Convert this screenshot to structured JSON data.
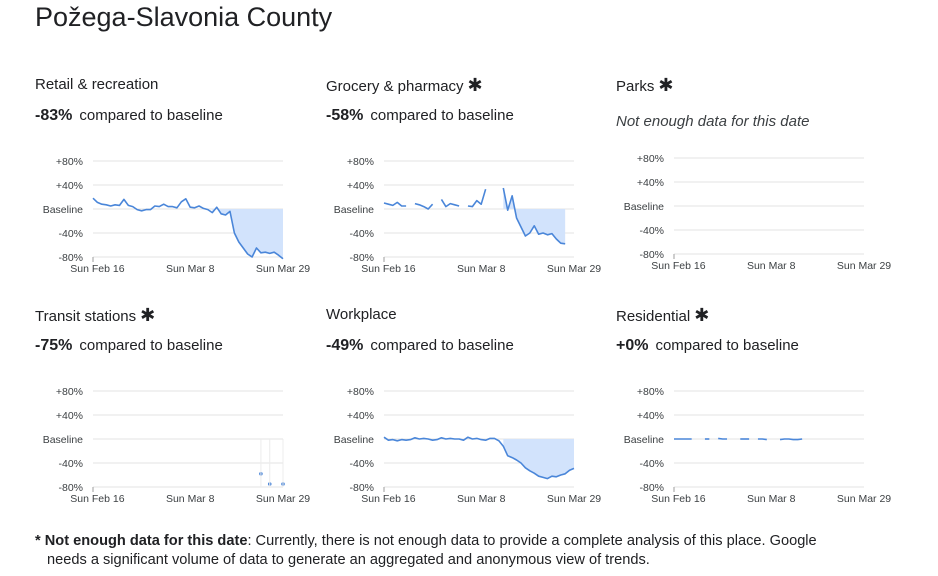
{
  "title": "Požega-Slavonia County",
  "compared_text": "compared to baseline",
  "no_data_text": "Not enough data for this date",
  "footnote": {
    "star": "*",
    "bold": "Not enough data for this date",
    "text1": ": Currently, there is not enough data to provide a complete analysis of this place. Google",
    "text2": "needs a significant volume of data to generate an aggregated and anonymous view of trends."
  },
  "colors": {
    "line": "#4a86d9",
    "fill": "#d2e3fc",
    "grid": "#e3e3e3",
    "text": "#202124"
  },
  "chart_data": [
    {
      "type": "line",
      "title": "Retail & recreation",
      "has_star": false,
      "change": "-83%",
      "y_tick_labels": [
        "+80%",
        "+40%",
        "Baseline",
        "-40%",
        "-80%"
      ],
      "ylim": [
        -80,
        80
      ],
      "x_tick_labels": [
        "Sun Feb 16",
        "Sun Mar 8",
        "Sun Mar 29"
      ],
      "x_range": [
        "2020-02-15",
        "2020-03-29"
      ],
      "shaded_from": "2020-03-13",
      "series": [
        {
          "x_start": "2020-02-15",
          "values": [
            18,
            11,
            8,
            7,
            5,
            7,
            6,
            16,
            6,
            4,
            -1,
            -3,
            -1,
            -1,
            5,
            4,
            8,
            4,
            4,
            2,
            12,
            17,
            3,
            2,
            5,
            1,
            -1,
            -6,
            3,
            -8,
            -10,
            -4,
            -40,
            -55,
            -65,
            -75,
            -80,
            -65,
            -73,
            -72,
            -74,
            -72,
            -77,
            -83
          ]
        }
      ],
      "grid": true
    },
    {
      "type": "line",
      "title": "Grocery & pharmacy",
      "has_star": true,
      "change": "-58%",
      "y_tick_labels": [
        "+80%",
        "+40%",
        "Baseline",
        "-40%",
        "-80%"
      ],
      "ylim": [
        -80,
        80
      ],
      "x_tick_labels": [
        "Sun Feb 16",
        "Sun Mar 8",
        "Sun Mar 29"
      ],
      "x_range": [
        "2020-02-15",
        "2020-03-29"
      ],
      "shaded_from": "2020-03-13",
      "series": [
        {
          "x_start": "2020-02-15",
          "values": [
            10,
            8,
            6,
            11,
            5,
            5,
            null,
            9,
            7,
            4,
            0,
            8,
            null,
            16,
            4,
            9,
            7,
            5,
            null,
            5,
            4,
            14,
            8,
            33,
            null,
            null,
            null,
            35,
            -2,
            22,
            -15,
            -30,
            -45,
            -40,
            -28,
            -42,
            -40,
            -43,
            -41,
            -50,
            -57,
            -58
          ]
        }
      ],
      "grid": true
    },
    {
      "type": "line",
      "title": "Parks",
      "has_star": true,
      "change": "",
      "y_tick_labels": [
        "+80%",
        "+40%",
        "Baseline",
        "-40%",
        "-80%"
      ],
      "ylim": [
        -80,
        80
      ],
      "x_tick_labels": [
        "Sun Feb 16",
        "Sun Mar 8",
        "Sun Mar 29"
      ],
      "x_range": [
        "2020-02-15",
        "2020-03-29"
      ],
      "shaded_from": "",
      "series": [],
      "grid": true
    },
    {
      "type": "line",
      "title": "Transit stations",
      "has_star": true,
      "change": "-75%",
      "y_tick_labels": [
        "+80%",
        "+40%",
        "Baseline",
        "-40%",
        "-80%"
      ],
      "ylim": [
        -80,
        80
      ],
      "x_tick_labels": [
        "Sun Feb 16",
        "Sun Mar 8",
        "Sun Mar 29"
      ],
      "x_range": [
        "2020-02-15",
        "2020-03-29"
      ],
      "shaded_from": "",
      "series": [
        {
          "x_start": "2020-02-15",
          "values": [
            null,
            null,
            null,
            null,
            null,
            null,
            null,
            null,
            null,
            null,
            null,
            null,
            null,
            null,
            null,
            null,
            null,
            null,
            null,
            null,
            null,
            null,
            null,
            null,
            null,
            null,
            null,
            null,
            null,
            null,
            null,
            null,
            null,
            null,
            null,
            null,
            null,
            null,
            -58,
            null,
            -75,
            null,
            null,
            -75
          ]
        }
      ],
      "grid": true
    },
    {
      "type": "line",
      "title": "Workplace",
      "has_star": false,
      "change": "-49%",
      "y_tick_labels": [
        "+80%",
        "+40%",
        "Baseline",
        "-40%",
        "-80%"
      ],
      "ylim": [
        -80,
        80
      ],
      "x_tick_labels": [
        "Sun Feb 16",
        "Sun Mar 8",
        "Sun Mar 29"
      ],
      "x_range": [
        "2020-02-15",
        "2020-03-29"
      ],
      "shaded_from": "2020-03-13",
      "series": [
        {
          "x_start": "2020-02-15",
          "values": [
            3,
            -2,
            -1,
            -3,
            -1,
            -2,
            -1,
            2,
            0,
            1,
            0,
            -2,
            -1,
            2,
            0,
            1,
            0,
            0,
            -2,
            3,
            0,
            1,
            -1,
            -2,
            1,
            1,
            -3,
            -12,
            -28,
            -31,
            -35,
            -40,
            -48,
            -53,
            -57,
            -62,
            -64,
            -66,
            -62,
            -63,
            -60,
            -58,
            -52,
            -49
          ]
        }
      ],
      "grid": true
    },
    {
      "type": "line",
      "title": "Residential",
      "has_star": true,
      "change": "+0%",
      "y_tick_labels": [
        "+80%",
        "+40%",
        "Baseline",
        "-40%",
        "-80%"
      ],
      "ylim": [
        -80,
        80
      ],
      "x_tick_labels": [
        "Sun Feb 16",
        "Sun Mar 8",
        "Sun Mar 29"
      ],
      "x_range": [
        "2020-02-15",
        "2020-03-29"
      ],
      "shaded_from": "",
      "series": [
        {
          "x_start": "2020-02-15",
          "values": [
            0,
            0,
            0,
            0,
            0,
            null,
            null,
            0,
            0,
            null,
            1,
            0,
            0,
            null,
            null,
            0,
            0,
            0,
            null,
            0,
            0,
            -1,
            null,
            null,
            -1,
            0,
            0,
            -1,
            -1,
            0,
            null,
            null,
            null,
            null,
            null,
            null,
            null,
            null,
            null,
            null,
            null,
            null,
            null,
            null
          ]
        }
      ],
      "grid": true
    }
  ]
}
